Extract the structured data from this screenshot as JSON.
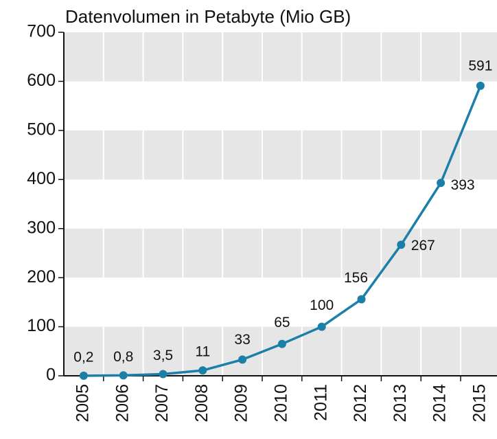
{
  "chart_data": {
    "type": "line",
    "title": "Datenvolumen in Petabyte (Mio GB)",
    "categories": [
      "2005",
      "2006",
      "2007",
      "2008",
      "2009",
      "2010",
      "2011",
      "2012",
      "2013",
      "2014",
      "2015"
    ],
    "values": [
      0.2,
      0.8,
      3.5,
      11,
      33,
      65,
      100,
      156,
      267,
      393,
      591
    ],
    "value_labels": [
      "0,2",
      "0,8",
      "3,5",
      "11",
      "33",
      "65",
      "100",
      "156",
      "267",
      "393",
      "591"
    ],
    "color": "#1b7fa8",
    "ylim": [
      0,
      700
    ],
    "yticks": [
      0,
      100,
      200,
      300,
      400,
      500,
      600,
      700
    ],
    "grid": true
  }
}
